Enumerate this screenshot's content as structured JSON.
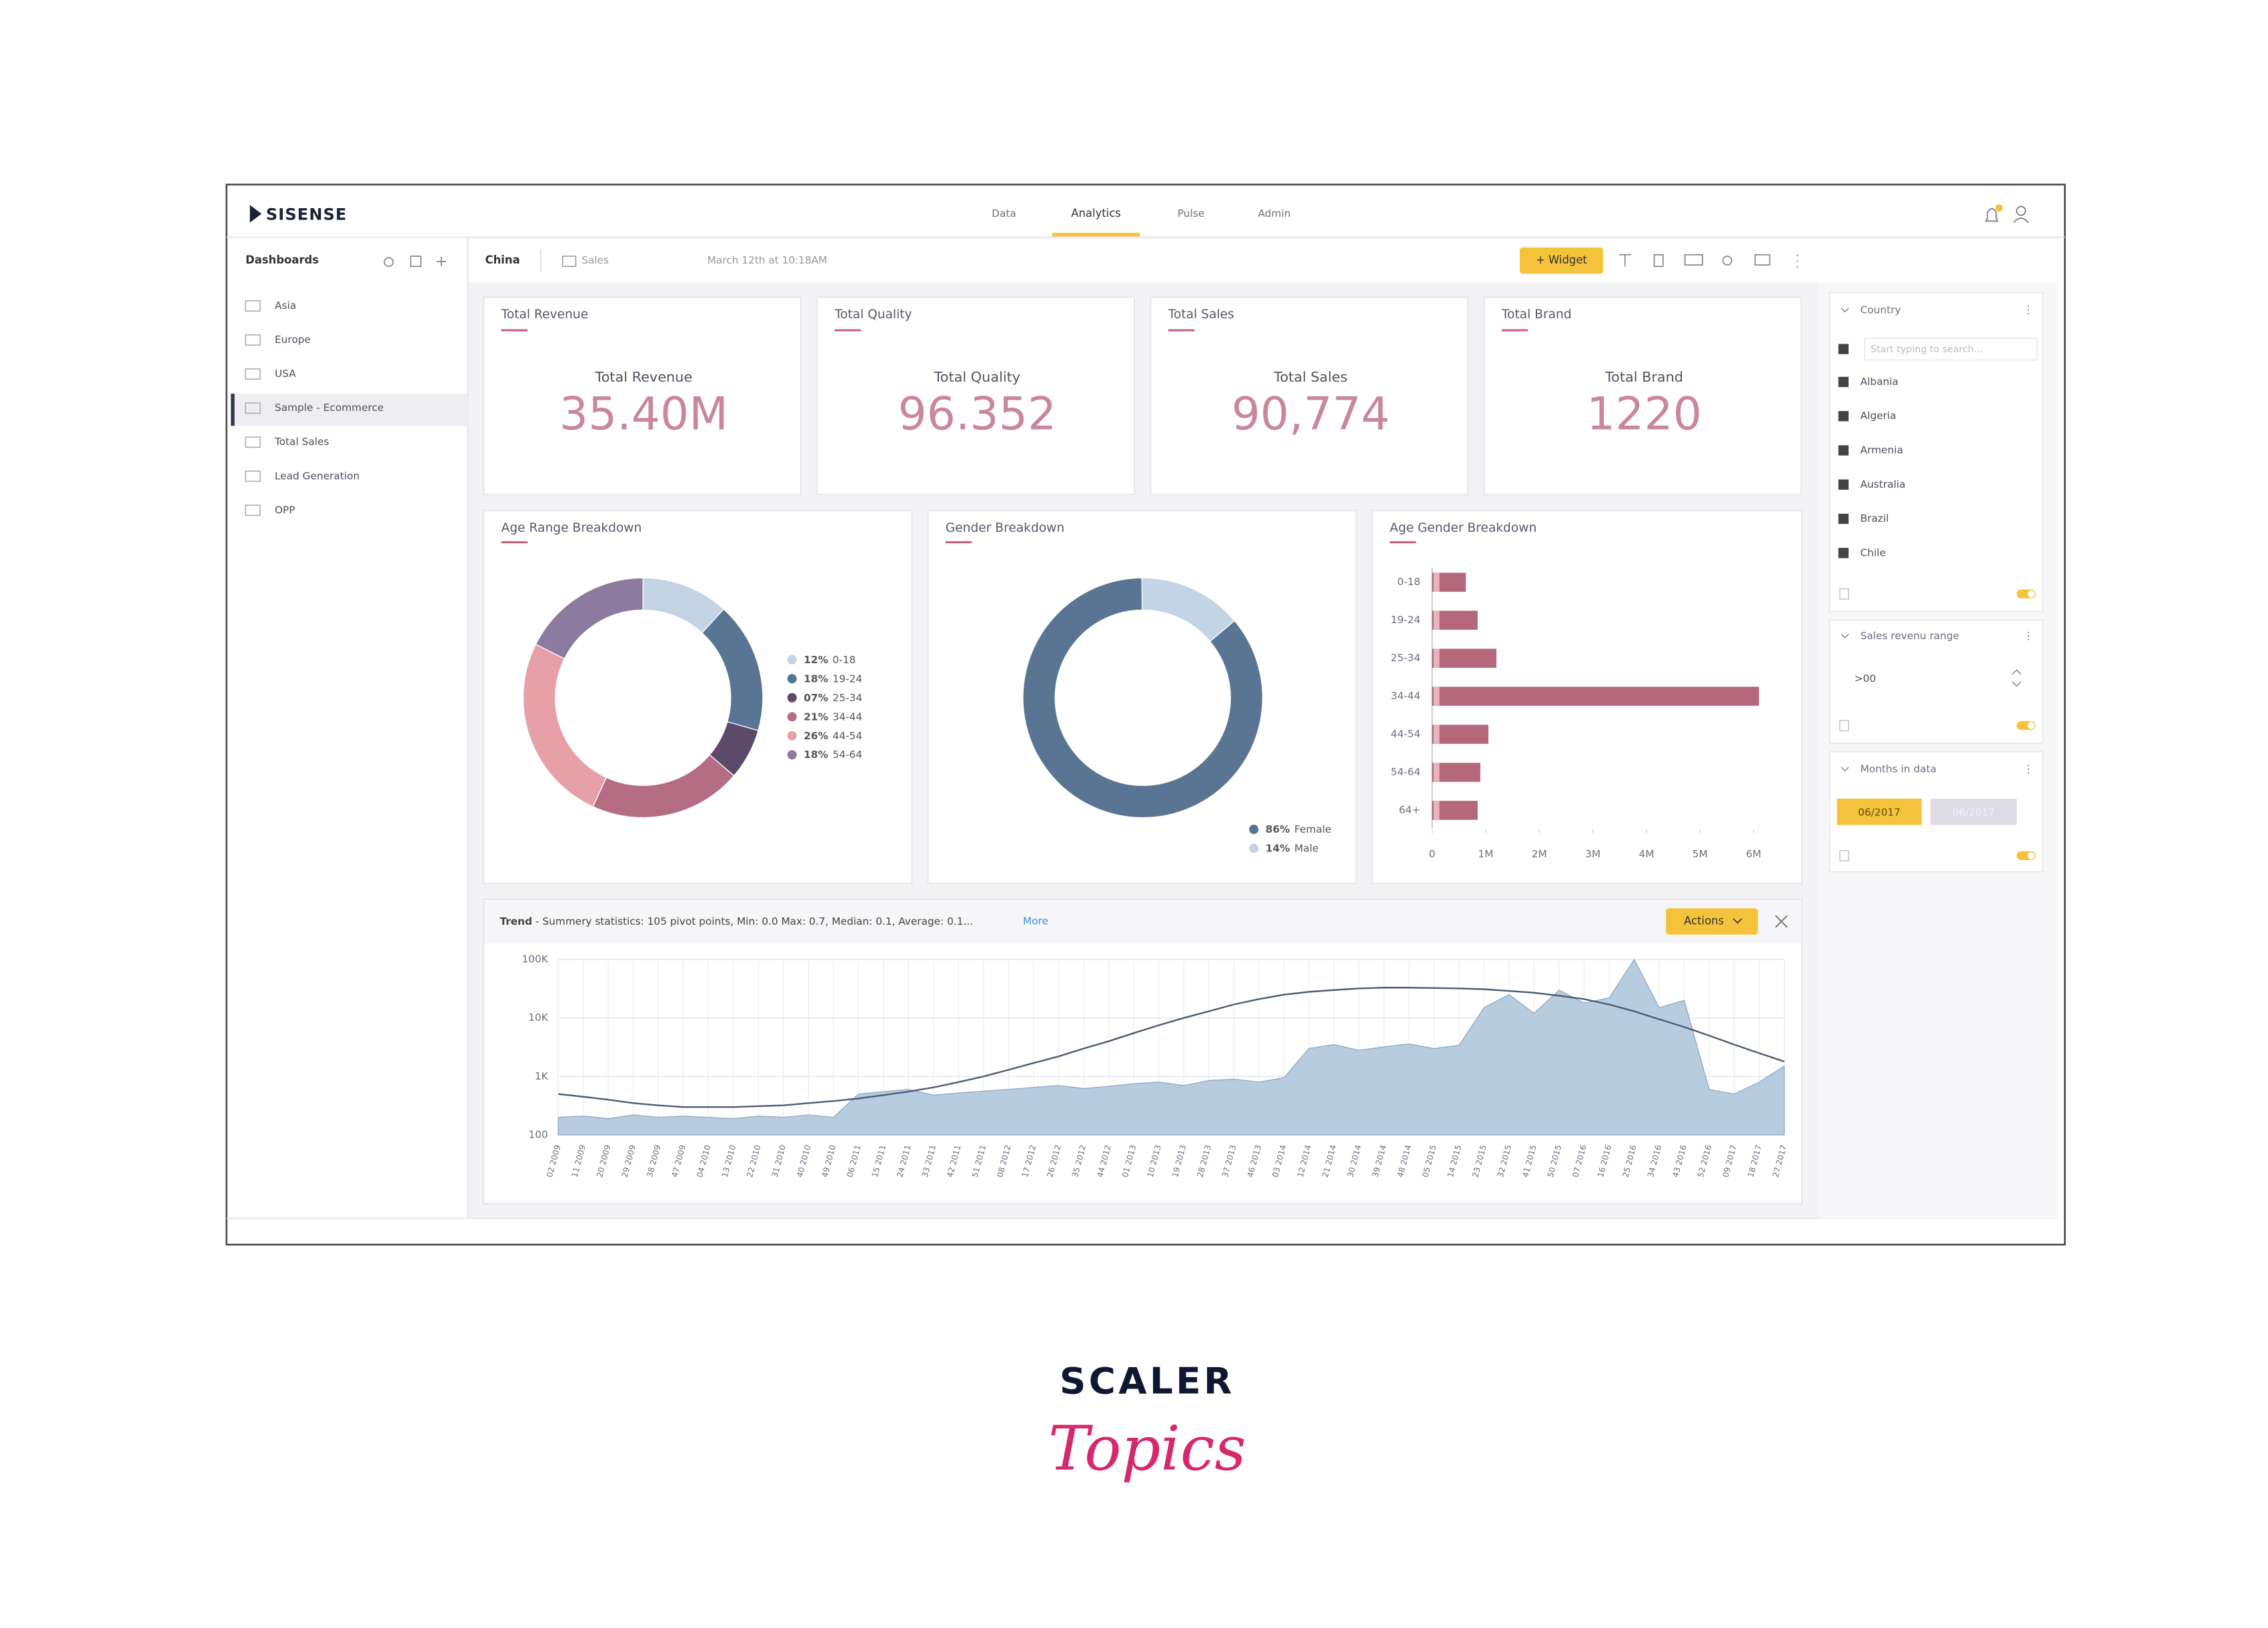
{
  "app": {
    "logo": "SISENSE",
    "nav": [
      "Data",
      "Analytics",
      "Pulse",
      "Admin"
    ]
  },
  "sidebar": {
    "title": "Dashboards",
    "items": [
      "Asia",
      "Europe",
      "USA",
      "Sample - Ecommerce",
      "Total Sales",
      "Lead Generation",
      "OPP"
    ]
  },
  "toolbar": {
    "dashboard": "China",
    "folder": "Sales",
    "date": "March 12th at 10:18AM",
    "widget_button": "+ Widget"
  },
  "kpis": [
    {
      "title": "Total Revenue",
      "label": "Total Revenue",
      "value": "35.40M"
    },
    {
      "title": "Total Quality",
      "label": "Total Quality",
      "value": "96.352"
    },
    {
      "title": "Total Sales",
      "label": "Total Sales",
      "value": "90,774"
    },
    {
      "title": "Total Brand",
      "label": "Total Brand",
      "value": "1220"
    }
  ],
  "filters": {
    "country": {
      "title": "Country",
      "search": "Start typing to search...",
      "options": [
        "Albania",
        "Algeria",
        "Armenia",
        "Australia",
        "Brazil",
        "Chile"
      ]
    },
    "revenue": {
      "title": "Sales revenu range",
      "value": ">00"
    },
    "months": {
      "title": "Months in data",
      "from": "06/2017",
      "to": "06/2017"
    }
  },
  "trend_header": {
    "summary": " - Summery statistics: 105 pivot points, Min: 0.0 Max: 0.7, Median: 0.1, Average: 0.1...",
    "more": "More",
    "actions": "Actions"
  },
  "chart_data": [
    {
      "type": "donut",
      "title": "Age Range Breakdown",
      "categories": [
        "0-18",
        "19-24",
        "25-34",
        "34-44",
        "44-54",
        "54-64"
      ],
      "values": [
        12,
        18,
        7,
        21,
        26,
        18
      ],
      "value_labels": [
        "12%",
        "18%",
        "07%",
        "21%",
        "26%",
        "18%"
      ],
      "colors": [
        "#c3d3e3",
        "#5a7594",
        "#5d4a6a",
        "#b56d84",
        "#e7a0a7",
        "#8c7b9e"
      ]
    },
    {
      "type": "donut",
      "title": "Gender Breakdown",
      "categories": [
        "Female",
        "Male"
      ],
      "values": [
        86,
        14
      ],
      "value_labels": [
        "86%",
        "14%"
      ],
      "colors": [
        "#5a7594",
        "#c2d4e6"
      ]
    },
    {
      "type": "hbar",
      "title": "Age Gender Breakdown",
      "categories": [
        "0-18",
        "19-24",
        "25-34",
        "34-44",
        "44-54",
        "54-64",
        "64+"
      ],
      "values": [
        630000,
        850000,
        1200000,
        6100000,
        1050000,
        900000,
        850000
      ],
      "color": "#b5677c",
      "xlim": [
        0,
        6000000
      ],
      "xticks": [
        0,
        {
          "value": 1000000,
          "label": "1M"
        },
        {
          "value": 2000000,
          "label": "2M"
        },
        {
          "value": 3000000,
          "label": "3M"
        },
        {
          "value": 4000000,
          "label": "4M"
        },
        {
          "value": 5000000,
          "label": "5M"
        },
        {
          "value": 6000000,
          "label": "6M"
        }
      ]
    },
    {
      "type": "area",
      "title": "Trend",
      "categories": [
        "02 2009",
        "11 2009",
        "20 2009",
        "29 2009",
        "38 2009",
        "47 2009",
        "04 2010",
        "13 2010",
        "22 2010",
        "31 2010",
        "40 2010",
        "49 2010",
        "06 2011",
        "15 2011",
        "24 2011",
        "33 2011",
        "42 2011",
        "51 2011",
        "08 2012",
        "17 2012",
        "26 2012",
        "35 2012",
        "44 2012",
        "01 2013",
        "10 2013",
        "19 2013",
        "28 2013",
        "37 2013",
        "46 2013",
        "03 2014",
        "12 2014",
        "21 2014",
        "30 2014",
        "39 2014",
        "48 2014",
        "05 2015",
        "14 2015",
        "23 2015",
        "32 2015",
        "41 2015",
        "50 2015",
        "07 2016",
        "16 2016",
        "25 2016",
        "34 2016",
        "43 2016",
        "52 2016",
        "09 2017",
        "18 2017",
        "27 2017"
      ],
      "series": [
        {
          "style": "area",
          "color": "#b8cce0",
          "values": [
            200,
            210,
            190,
            220,
            200,
            210,
            200,
            190,
            210,
            200,
            220,
            200,
            500,
            550,
            600,
            480,
            520,
            560,
            600,
            650,
            700,
            620,
            680,
            750,
            800,
            700,
            850,
            900,
            800,
            950,
            3000,
            3500,
            2800,
            3200,
            3600,
            3000,
            3400,
            15000,
            25000,
            12000,
            30000,
            18000,
            22000,
            100000,
            15000,
            20000,
            600,
            500,
            800,
            1500
          ]
        },
        {
          "style": "line",
          "color": "#4d5b78",
          "values": [
            500,
            450,
            400,
            350,
            320,
            300,
            300,
            300,
            310,
            320,
            350,
            380,
            420,
            480,
            550,
            650,
            800,
            1000,
            1300,
            1700,
            2200,
            3000,
            4000,
            5500,
            7500,
            10000,
            13000,
            17000,
            21000,
            25000,
            28000,
            30000,
            32000,
            33000,
            33000,
            32500,
            32000,
            31000,
            29000,
            27000,
            24000,
            21000,
            17000,
            13000,
            9500,
            7000,
            5000,
            3500,
            2500,
            1800
          ]
        }
      ],
      "ylim": [
        100,
        100000
      ],
      "yscale": "log",
      "yticks": [
        100,
        {
          "value": 1000,
          "label": "1K"
        },
        {
          "value": 10000,
          "label": "10K"
        },
        {
          "value": 100000,
          "label": "100K"
        }
      ],
      "grid": true
    }
  ],
  "footer": {
    "brand": "SCALER",
    "tagline": "Topics"
  }
}
